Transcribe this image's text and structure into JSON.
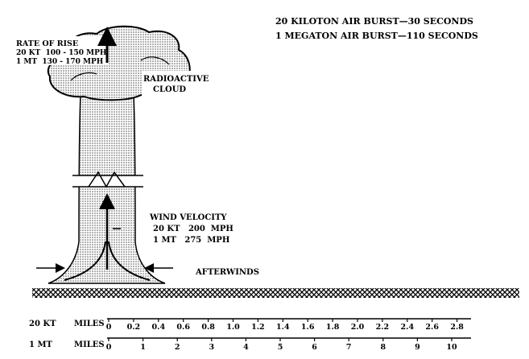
{
  "burst_times": {
    "line1": "20 KILOTON AIR BURST—30 SECONDS",
    "line2": "1 MEGATON AIR BURST—110 SECONDS"
  },
  "rate_of_rise": {
    "title": "RATE OF RISE",
    "kt": "20 KT  100 - 150 MPH",
    "mt": "1 MT  130 - 170 MPH"
  },
  "cloud_label": {
    "line1": "RADIOACTIVE",
    "line2": "CLOUD"
  },
  "wind_velocity": {
    "title": "WIND VELOCITY",
    "kt": "20 KT   200  MPH",
    "mt": "1 MT   275  MPH"
  },
  "afterwinds": "AFTERWINDS",
  "scales": [
    {
      "label": "20 KT",
      "unit": "MILES",
      "ticks": [
        "0",
        "0.2",
        "0.4",
        "0.6",
        "0.8",
        "1.0",
        "1.2",
        "1.4",
        "1.6",
        "1.8",
        "2.0",
        "2.2",
        "2.4",
        "2.6",
        "2.8"
      ]
    },
    {
      "label": "1 MT",
      "unit": "MILES",
      "ticks": [
        "0",
        "1",
        "2",
        "3",
        "4",
        "5",
        "6",
        "7",
        "8",
        "9",
        "10"
      ]
    }
  ]
}
